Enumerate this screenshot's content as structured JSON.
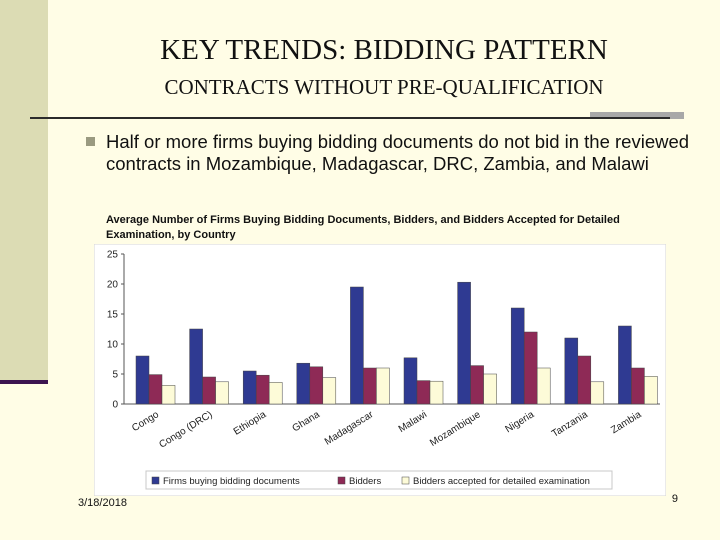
{
  "slide": {
    "title": "KEY TRENDS: BIDDING PATTERN",
    "subtitle": "CONTRACTS WITHOUT PRE-QUALIFICATION",
    "bullet": "Half or more firms buying bidding documents do not bid in the reviewed contracts in Mozambique, Madagascar, DRC, Zambia, and Malawi",
    "footer_date": "3/18/2018",
    "page_number": "9"
  },
  "colors": {
    "background": "#fffde6",
    "firms": "#2f3a92",
    "bidders": "#8e2a56",
    "accepted": "#fdfbd8"
  },
  "chart_data": {
    "type": "bar",
    "title": "Average Number of Firms Buying Bidding Documents, Bidders, and Bidders Accepted for Detailed Examination, by Country",
    "categories": [
      "Congo",
      "Congo (DRC)",
      "Ethiopia",
      "Ghana",
      "Madagascar",
      "Malawi",
      "Mozambique",
      "Nigeria",
      "Tanzania",
      "Zambia"
    ],
    "series": [
      {
        "name": "Firms buying bidding documents",
        "values": [
          8,
          12.5,
          5.5,
          6.8,
          19.5,
          7.7,
          20.3,
          16,
          11,
          13
        ]
      },
      {
        "name": "Bidders",
        "values": [
          4.9,
          4.5,
          4.8,
          6.2,
          6,
          3.9,
          6.4,
          12,
          8,
          6
        ]
      },
      {
        "name": "Bidders accepted for detailed examination",
        "values": [
          3.1,
          3.7,
          3.6,
          4.4,
          6,
          3.8,
          5,
          6,
          3.7,
          4.6
        ]
      }
    ],
    "ylim": [
      0,
      25
    ],
    "yticks": [
      0,
      5,
      10,
      15,
      20,
      25
    ],
    "grid": false,
    "legend_position": "bottom"
  }
}
